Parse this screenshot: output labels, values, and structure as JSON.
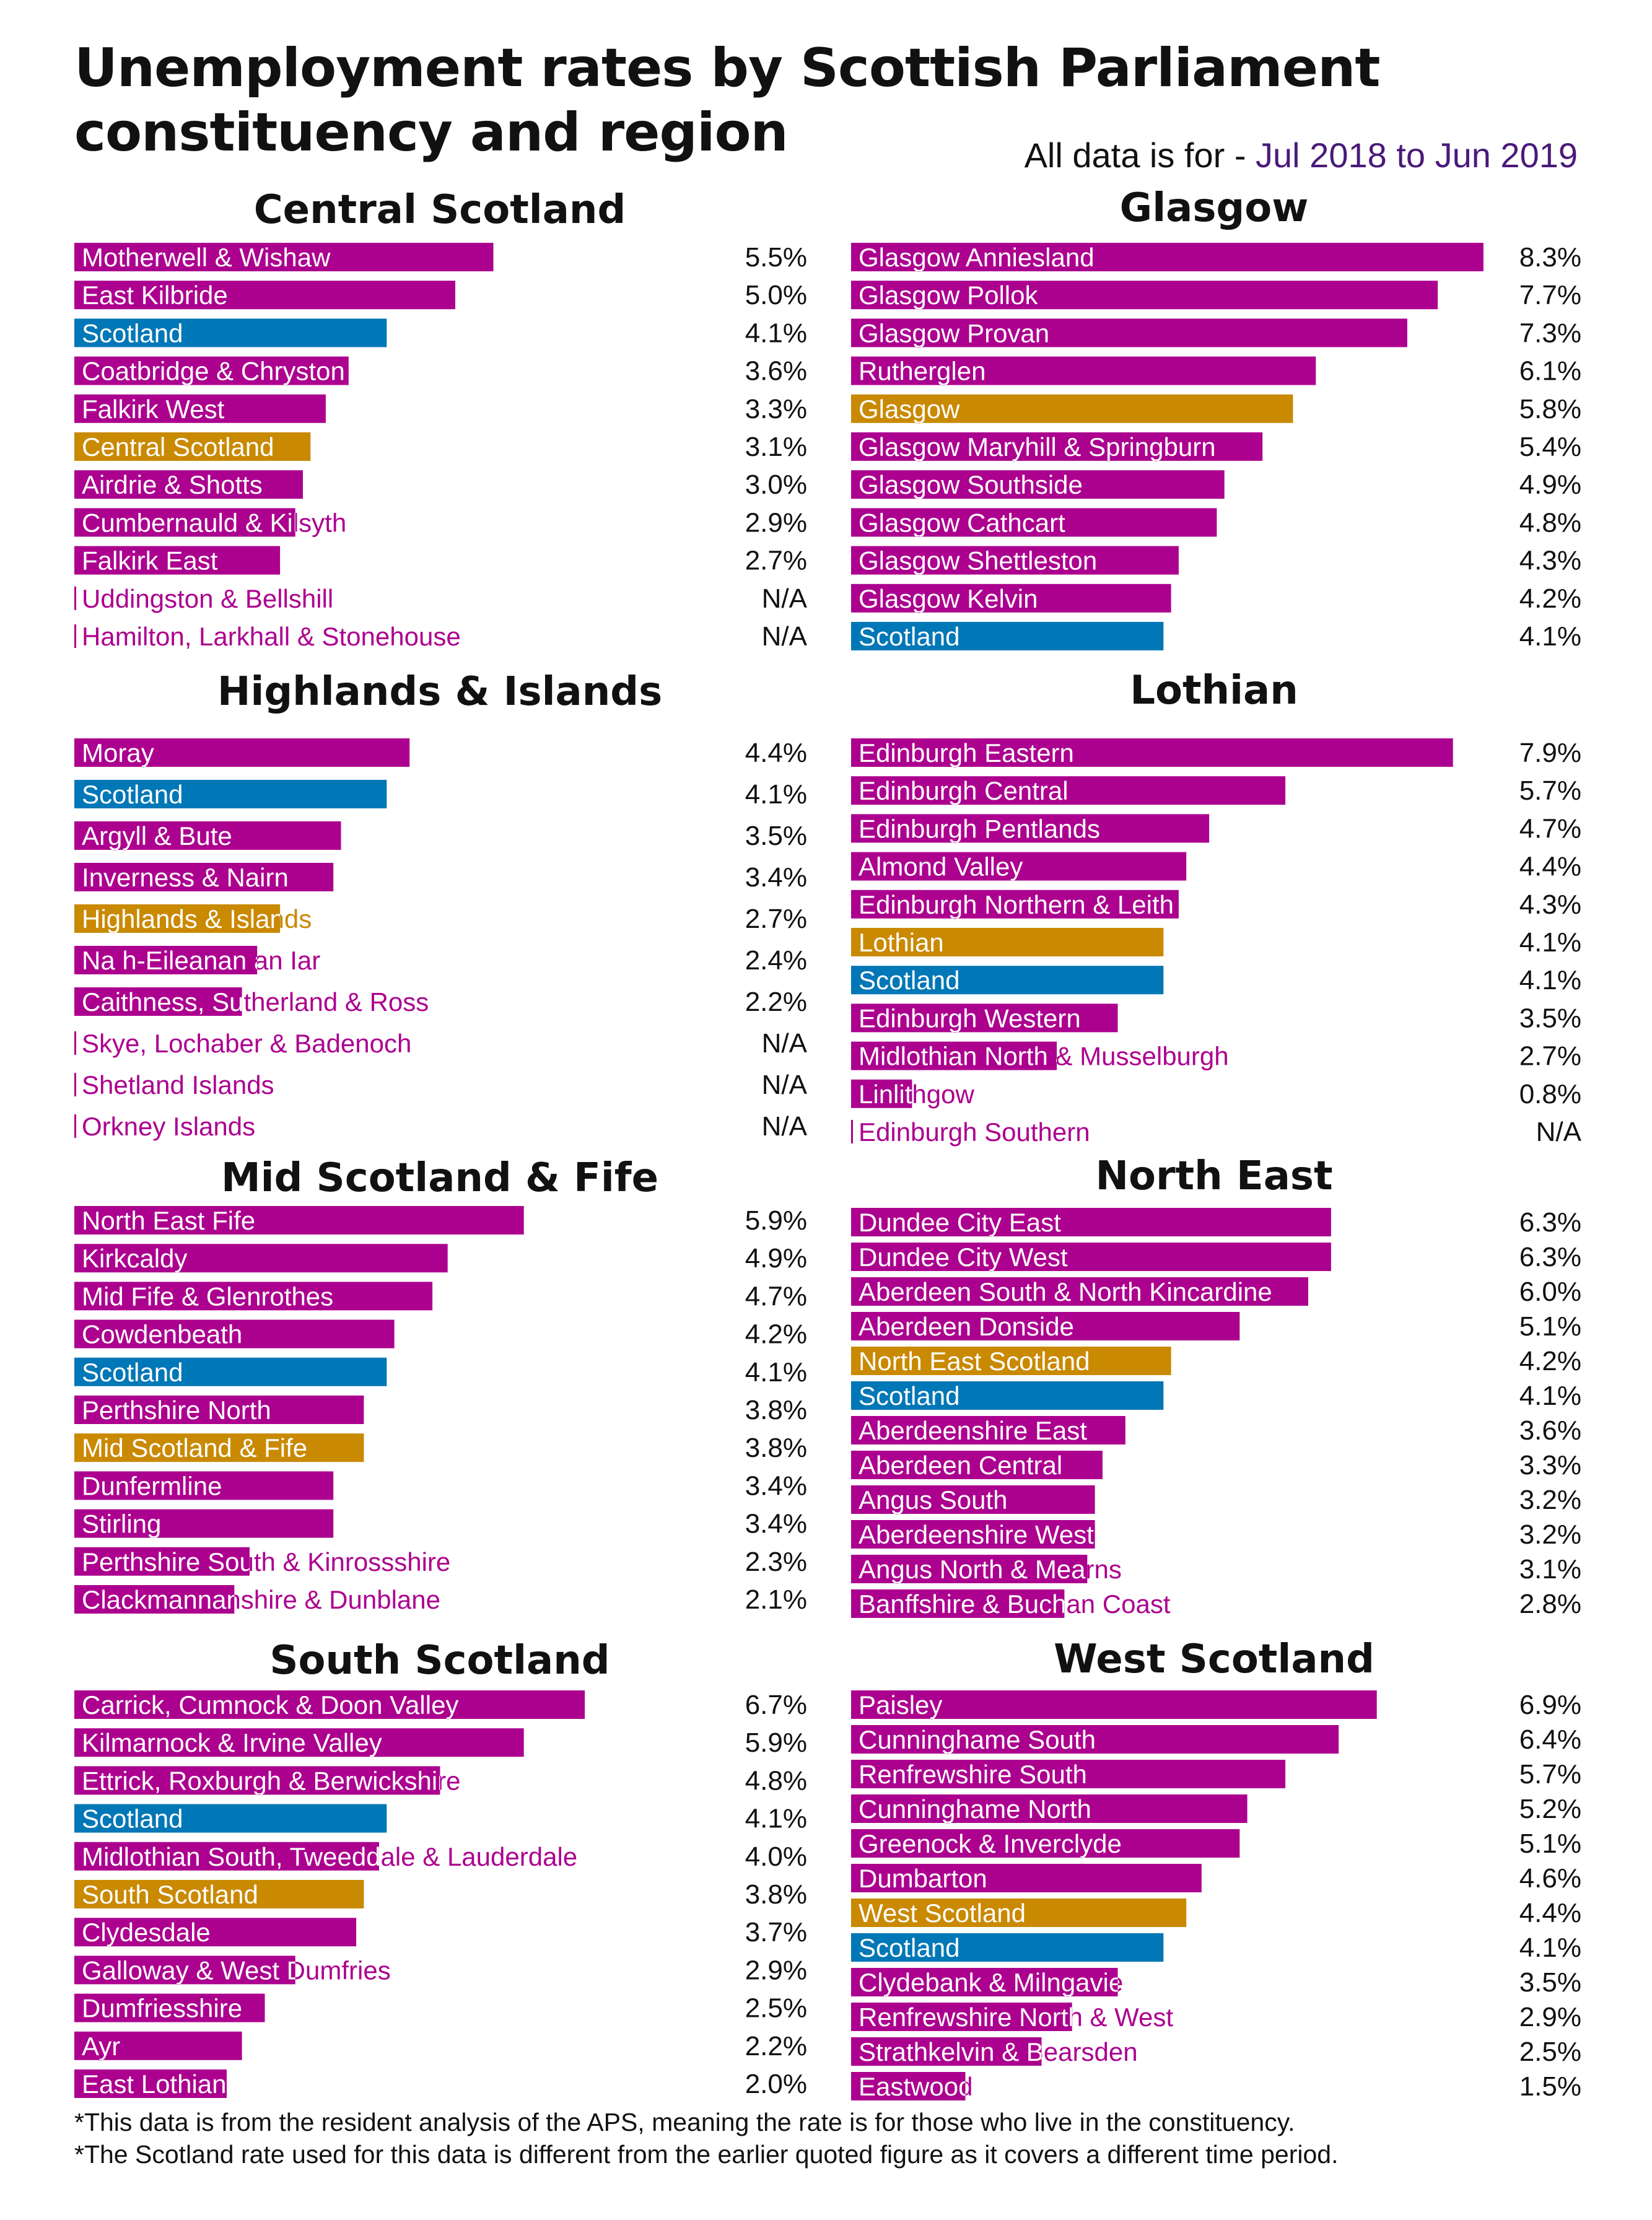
{
  "title_line1": "Unemployment rates by Scottish Parliament",
  "title_line2": "constituency and region",
  "subtitle_prefix": "All data is for - ",
  "subtitle_value": "Jul 2018 to Jun 2019",
  "colors": {
    "constituency": "#ac008f",
    "scotland": "#0077b6",
    "region": "#c98900"
  },
  "footnotes": [
    "*This data is from the resident analysis of the APS, meaning the rate is for those who live in the constituency.",
    "*The Scotland rate used for this data is different from the earlier quoted figure as it covers a different time period."
  ],
  "chart_data": [
    {
      "type": "bar",
      "title": "Central Scotland",
      "rows": [
        {
          "label": "Motherwell & Wishaw",
          "value": 5.5,
          "text": "5.5%",
          "kind": "constituency"
        },
        {
          "label": "East Kilbride",
          "value": 5.0,
          "text": "5.0%",
          "kind": "constituency"
        },
        {
          "label": "Scotland",
          "value": 4.1,
          "text": "4.1%",
          "kind": "scotland"
        },
        {
          "label": "Coatbridge & Chryston",
          "value": 3.6,
          "text": "3.6%",
          "kind": "constituency"
        },
        {
          "label": "Falkirk West",
          "value": 3.3,
          "text": "3.3%",
          "kind": "constituency"
        },
        {
          "label": "Central Scotland",
          "value": 3.1,
          "text": "3.1%",
          "kind": "region"
        },
        {
          "label": "Airdrie & Shotts",
          "value": 3.0,
          "text": "3.0%",
          "kind": "constituency"
        },
        {
          "label": "Cumbernauld & Kilsyth",
          "value": 2.9,
          "text": "2.9%",
          "kind": "constituency"
        },
        {
          "label": "Falkirk East",
          "value": 2.7,
          "text": "2.7%",
          "kind": "constituency"
        },
        {
          "label": "Uddingston & Bellshill",
          "value": null,
          "text": "N/A",
          "kind": "constituency"
        },
        {
          "label": "Hamilton, Larkhall & Stonehouse",
          "value": null,
          "text": "N/A",
          "kind": "constituency"
        }
      ]
    },
    {
      "type": "bar",
      "title": "Glasgow",
      "rows": [
        {
          "label": "Glasgow Anniesland",
          "value": 8.3,
          "text": "8.3%",
          "kind": "constituency"
        },
        {
          "label": "Glasgow Pollok",
          "value": 7.7,
          "text": "7.7%",
          "kind": "constituency"
        },
        {
          "label": "Glasgow Provan",
          "value": 7.3,
          "text": "7.3%",
          "kind": "constituency"
        },
        {
          "label": "Rutherglen",
          "value": 6.1,
          "text": "6.1%",
          "kind": "constituency"
        },
        {
          "label": "Glasgow",
          "value": 5.8,
          "text": "5.8%",
          "kind": "region"
        },
        {
          "label": "Glasgow Maryhill & Springburn",
          "value": 5.4,
          "text": "5.4%",
          "kind": "constituency"
        },
        {
          "label": "Glasgow Southside",
          "value": 4.9,
          "text": "4.9%",
          "kind": "constituency"
        },
        {
          "label": "Glasgow Cathcart",
          "value": 4.8,
          "text": "4.8%",
          "kind": "constituency"
        },
        {
          "label": "Glasgow Shettleston",
          "value": 4.3,
          "text": "4.3%",
          "kind": "constituency"
        },
        {
          "label": "Glasgow Kelvin",
          "value": 4.2,
          "text": "4.2%",
          "kind": "constituency"
        },
        {
          "label": "Scotland",
          "value": 4.1,
          "text": "4.1%",
          "kind": "scotland"
        }
      ]
    },
    {
      "type": "bar",
      "title": "Highlands & Islands",
      "rows": [
        {
          "label": "Moray",
          "value": 4.4,
          "text": "4.4%",
          "kind": "constituency"
        },
        {
          "label": "Scotland",
          "value": 4.1,
          "text": "4.1%",
          "kind": "scotland"
        },
        {
          "label": "Argyll & Bute",
          "value": 3.5,
          "text": "3.5%",
          "kind": "constituency"
        },
        {
          "label": "Inverness & Nairn",
          "value": 3.4,
          "text": "3.4%",
          "kind": "constituency"
        },
        {
          "label": "Highlands & Islands",
          "value": 2.7,
          "text": "2.7%",
          "kind": "region"
        },
        {
          "label": "Na h-Eileanan an Iar",
          "value": 2.4,
          "text": "2.4%",
          "kind": "constituency"
        },
        {
          "label": "Caithness, Sutherland & Ross",
          "value": 2.2,
          "text": "2.2%",
          "kind": "constituency"
        },
        {
          "label": "Skye, Lochaber & Badenoch",
          "value": null,
          "text": "N/A",
          "kind": "constituency"
        },
        {
          "label": "Shetland Islands",
          "value": null,
          "text": "N/A",
          "kind": "constituency"
        },
        {
          "label": "Orkney Islands",
          "value": null,
          "text": "N/A",
          "kind": "constituency"
        }
      ]
    },
    {
      "type": "bar",
      "title": "Lothian",
      "rows": [
        {
          "label": "Edinburgh Eastern",
          "value": 7.9,
          "text": "7.9%",
          "kind": "constituency"
        },
        {
          "label": "Edinburgh Central",
          "value": 5.7,
          "text": "5.7%",
          "kind": "constituency"
        },
        {
          "label": "Edinburgh Pentlands",
          "value": 4.7,
          "text": "4.7%",
          "kind": "constituency"
        },
        {
          "label": "Almond Valley",
          "value": 4.4,
          "text": "4.4%",
          "kind": "constituency"
        },
        {
          "label": "Edinburgh Northern & Leith",
          "value": 4.3,
          "text": "4.3%",
          "kind": "constituency"
        },
        {
          "label": "Lothian",
          "value": 4.1,
          "text": "4.1%",
          "kind": "region"
        },
        {
          "label": "Scotland",
          "value": 4.1,
          "text": "4.1%",
          "kind": "scotland"
        },
        {
          "label": "Edinburgh Western",
          "value": 3.5,
          "text": "3.5%",
          "kind": "constituency"
        },
        {
          "label": "Midlothian North & Musselburgh",
          "value": 2.7,
          "text": "2.7%",
          "kind": "constituency"
        },
        {
          "label": "Linlithgow",
          "value": 0.8,
          "text": "0.8%",
          "kind": "constituency"
        },
        {
          "label": "Edinburgh Southern",
          "value": null,
          "text": "N/A",
          "kind": "constituency"
        }
      ]
    },
    {
      "type": "bar",
      "title": "Mid Scotland & Fife",
      "rows": [
        {
          "label": "North East Fife",
          "value": 5.9,
          "text": "5.9%",
          "kind": "constituency"
        },
        {
          "label": "Kirkcaldy",
          "value": 4.9,
          "text": "4.9%",
          "kind": "constituency"
        },
        {
          "label": "Mid Fife & Glenrothes",
          "value": 4.7,
          "text": "4.7%",
          "kind": "constituency"
        },
        {
          "label": "Cowdenbeath",
          "value": 4.2,
          "text": "4.2%",
          "kind": "constituency"
        },
        {
          "label": "Scotland",
          "value": 4.1,
          "text": "4.1%",
          "kind": "scotland"
        },
        {
          "label": "Perthshire North",
          "value": 3.8,
          "text": "3.8%",
          "kind": "constituency"
        },
        {
          "label": "Mid Scotland & Fife",
          "value": 3.8,
          "text": "3.8%",
          "kind": "region"
        },
        {
          "label": "Dunfermline",
          "value": 3.4,
          "text": "3.4%",
          "kind": "constituency"
        },
        {
          "label": "Stirling",
          "value": 3.4,
          "text": "3.4%",
          "kind": "constituency"
        },
        {
          "label": "Perthshire South & Kinrossshire",
          "value": 2.3,
          "text": "2.3%",
          "kind": "constituency"
        },
        {
          "label": "Clackmannanshire & Dunblane",
          "value": 2.1,
          "text": "2.1%",
          "kind": "constituency"
        }
      ]
    },
    {
      "type": "bar",
      "title": "North East",
      "rows": [
        {
          "label": "Dundee City East",
          "value": 6.3,
          "text": "6.3%",
          "kind": "constituency"
        },
        {
          "label": "Dundee City West",
          "value": 6.3,
          "text": "6.3%",
          "kind": "constituency"
        },
        {
          "label": "Aberdeen South & North Kincardine",
          "value": 6.0,
          "text": "6.0%",
          "kind": "constituency"
        },
        {
          "label": "Aberdeen Donside",
          "value": 5.1,
          "text": "5.1%",
          "kind": "constituency"
        },
        {
          "label": "North East Scotland",
          "value": 4.2,
          "text": "4.2%",
          "kind": "region"
        },
        {
          "label": "Scotland",
          "value": 4.1,
          "text": "4.1%",
          "kind": "scotland"
        },
        {
          "label": "Aberdeenshire East",
          "value": 3.6,
          "text": "3.6%",
          "kind": "constituency"
        },
        {
          "label": "Aberdeen Central",
          "value": 3.3,
          "text": "3.3%",
          "kind": "constituency"
        },
        {
          "label": "Angus South",
          "value": 3.2,
          "text": "3.2%",
          "kind": "constituency"
        },
        {
          "label": "Aberdeenshire West",
          "value": 3.2,
          "text": "3.2%",
          "kind": "constituency"
        },
        {
          "label": "Angus North & Mearns",
          "value": 3.1,
          "text": "3.1%",
          "kind": "constituency"
        },
        {
          "label": "Banffshire & Buchan Coast",
          "value": 2.8,
          "text": "2.8%",
          "kind": "constituency"
        }
      ]
    },
    {
      "type": "bar",
      "title": "South Scotland",
      "rows": [
        {
          "label": "Carrick, Cumnock & Doon Valley",
          "value": 6.7,
          "text": "6.7%",
          "kind": "constituency"
        },
        {
          "label": "Kilmarnock & Irvine Valley",
          "value": 5.9,
          "text": "5.9%",
          "kind": "constituency"
        },
        {
          "label": "Ettrick, Roxburgh & Berwickshire",
          "value": 4.8,
          "text": "4.8%",
          "kind": "constituency"
        },
        {
          "label": "Scotland",
          "value": 4.1,
          "text": "4.1%",
          "kind": "scotland"
        },
        {
          "label": "Midlothian South, Tweeddale & Lauderdale",
          "value": 4.0,
          "text": "4.0%",
          "kind": "constituency"
        },
        {
          "label": "South Scotland",
          "value": 3.8,
          "text": "3.8%",
          "kind": "region"
        },
        {
          "label": "Clydesdale",
          "value": 3.7,
          "text": "3.7%",
          "kind": "constituency"
        },
        {
          "label": "Galloway & West Dumfries",
          "value": 2.9,
          "text": "2.9%",
          "kind": "constituency"
        },
        {
          "label": "Dumfriesshire",
          "value": 2.5,
          "text": "2.5%",
          "kind": "constituency"
        },
        {
          "label": "Ayr",
          "value": 2.2,
          "text": "2.2%",
          "kind": "constituency"
        },
        {
          "label": "East Lothian",
          "value": 2.0,
          "text": "2.0%",
          "kind": "constituency"
        }
      ]
    },
    {
      "type": "bar",
      "title": "West Scotland",
      "rows": [
        {
          "label": "Paisley",
          "value": 6.9,
          "text": "6.9%",
          "kind": "constituency"
        },
        {
          "label": "Cunninghame South",
          "value": 6.4,
          "text": "6.4%",
          "kind": "constituency"
        },
        {
          "label": "Renfrewshire South",
          "value": 5.7,
          "text": "5.7%",
          "kind": "constituency"
        },
        {
          "label": "Cunninghame North",
          "value": 5.2,
          "text": "5.2%",
          "kind": "constituency"
        },
        {
          "label": "Greenock & Inverclyde",
          "value": 5.1,
          "text": "5.1%",
          "kind": "constituency"
        },
        {
          "label": "Dumbarton",
          "value": 4.6,
          "text": "4.6%",
          "kind": "constituency"
        },
        {
          "label": "West Scotland",
          "value": 4.4,
          "text": "4.4%",
          "kind": "region"
        },
        {
          "label": "Scotland",
          "value": 4.1,
          "text": "4.1%",
          "kind": "scotland"
        },
        {
          "label": "Clydebank & Milngavie",
          "value": 3.5,
          "text": "3.5%",
          "kind": "constituency"
        },
        {
          "label": "Renfrewshire North & West",
          "value": 2.9,
          "text": "2.9%",
          "kind": "constituency"
        },
        {
          "label": "Strathkelvin & Bearsden",
          "value": 2.5,
          "text": "2.5%",
          "kind": "constituency"
        },
        {
          "label": "Eastwood",
          "value": 1.5,
          "text": "1.5%",
          "kind": "constituency"
        }
      ]
    }
  ]
}
